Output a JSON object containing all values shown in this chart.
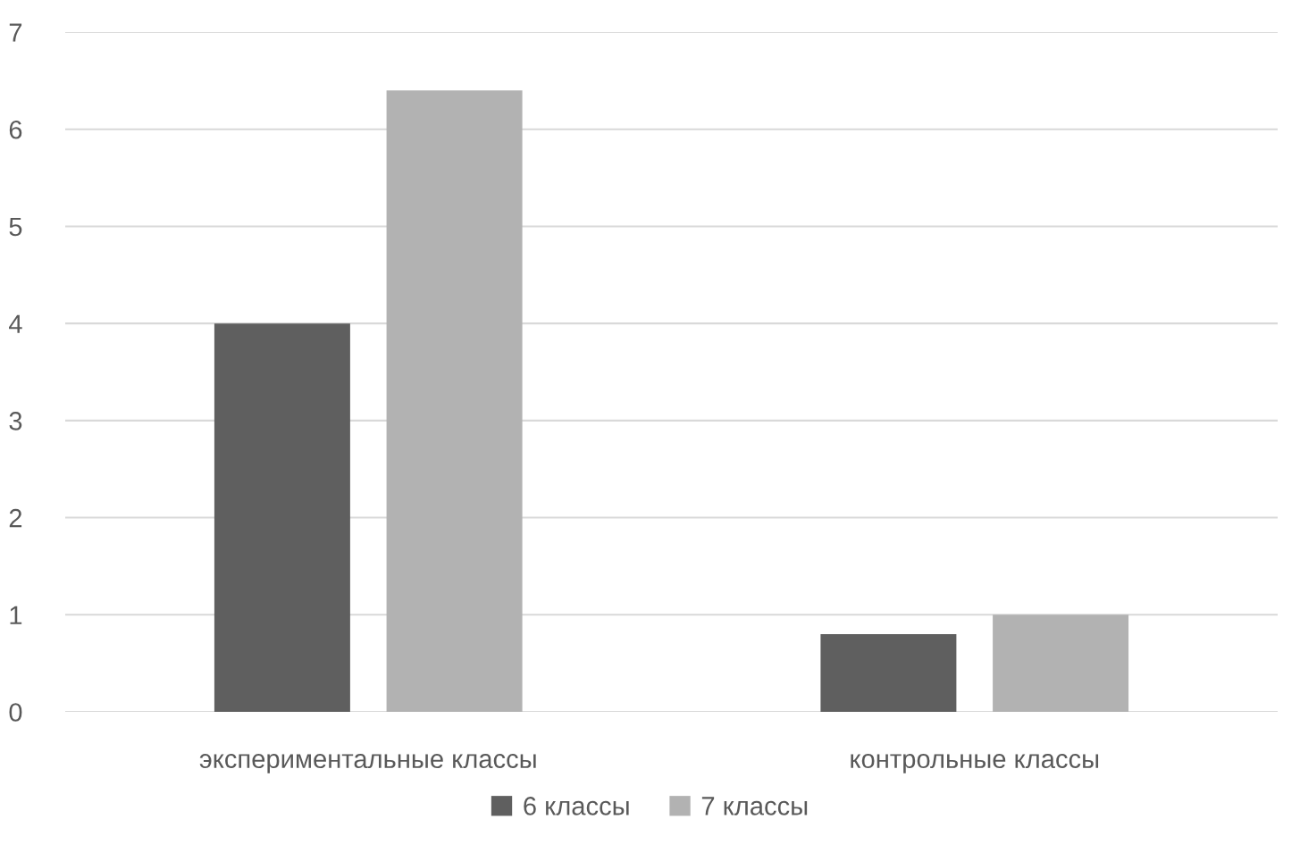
{
  "chart_data": {
    "type": "bar",
    "categories": [
      "экспериментальные классы",
      "контрольные классы"
    ],
    "series": [
      {
        "name": "6 классы",
        "color": "#5f5f5f",
        "values": [
          4.0,
          0.8
        ]
      },
      {
        "name": "7 классы",
        "color": "#b2b2b2",
        "values": [
          6.4,
          1.0
        ]
      }
    ],
    "ylim": [
      0,
      7
    ],
    "yticks": [
      0,
      1,
      2,
      3,
      4,
      5,
      6,
      7
    ],
    "grid": "y",
    "legend": "bottom"
  }
}
